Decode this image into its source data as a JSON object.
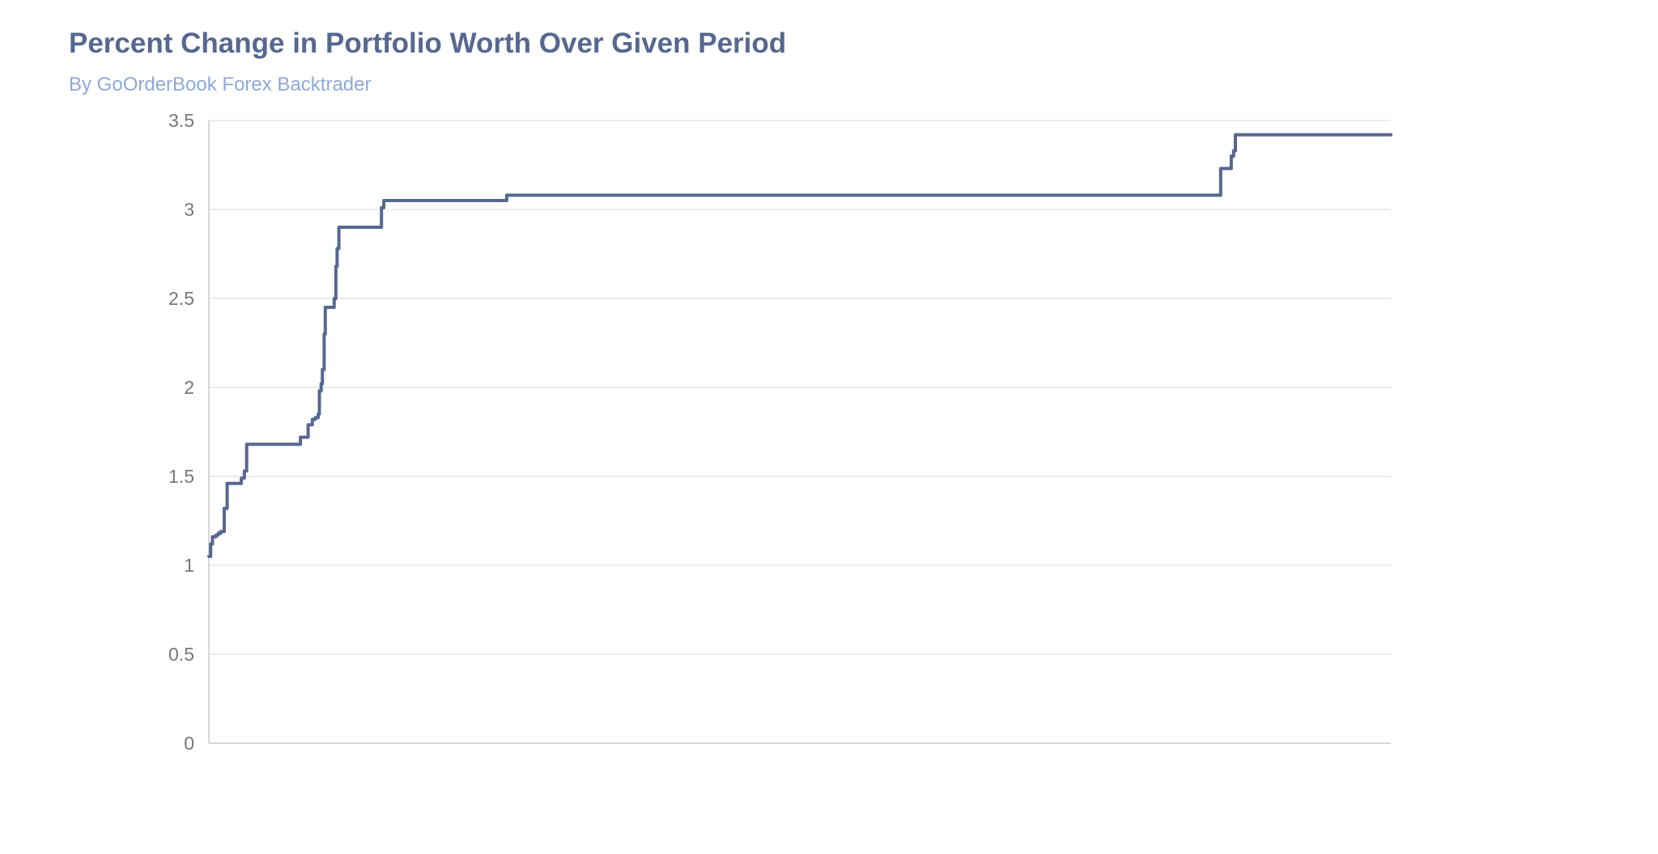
{
  "colors": {
    "title": "#566890",
    "subtitle": "#8fa8d8",
    "series": "#566890",
    "grid": "#e6e6e6",
    "axis": "#cccccc",
    "tick_label": "#777777"
  },
  "chart_data": {
    "type": "line",
    "title": "Percent Change in Portfolio Worth Over Given Period",
    "subtitle": "By GoOrderBook Forex Backtrader",
    "xlabel": "",
    "ylabel": "",
    "ylim": [
      0,
      3.5
    ],
    "xlim": [
      0,
      100
    ],
    "yticks": [
      0,
      0.5,
      1,
      1.5,
      2,
      2.5,
      3,
      3.5
    ],
    "ytick_labels": [
      "0",
      "0.5",
      "1",
      "1.5",
      "2",
      "2.5",
      "3",
      "3.5"
    ],
    "x_tick_labels_shown": false,
    "grid": true,
    "legend": "none",
    "step": true,
    "series": [
      {
        "points": [
          [
            0,
            1.05
          ],
          [
            0.15,
            1.12
          ],
          [
            0.3,
            1.16
          ],
          [
            0.6,
            1.17
          ],
          [
            0.8,
            1.18
          ],
          [
            1.0,
            1.19
          ],
          [
            1.3,
            1.32
          ],
          [
            1.55,
            1.46
          ],
          [
            2.75,
            1.49
          ],
          [
            3.0,
            1.53
          ],
          [
            3.2,
            1.68
          ],
          [
            7.75,
            1.72
          ],
          [
            8.4,
            1.79
          ],
          [
            8.75,
            1.82
          ],
          [
            9.0,
            1.83
          ],
          [
            9.25,
            1.85
          ],
          [
            9.35,
            1.98
          ],
          [
            9.5,
            2.02
          ],
          [
            9.6,
            2.1
          ],
          [
            9.75,
            2.3
          ],
          [
            9.85,
            2.45
          ],
          [
            10.6,
            2.5
          ],
          [
            10.75,
            2.68
          ],
          [
            10.85,
            2.78
          ],
          [
            11.0,
            2.9
          ],
          [
            14.6,
            3.01
          ],
          [
            14.8,
            3.05
          ],
          [
            25.2,
            3.08
          ],
          [
            85.6,
            3.23
          ],
          [
            86.5,
            3.3
          ],
          [
            86.7,
            3.33
          ],
          [
            86.85,
            3.42
          ],
          [
            100,
            3.42
          ]
        ]
      }
    ]
  }
}
